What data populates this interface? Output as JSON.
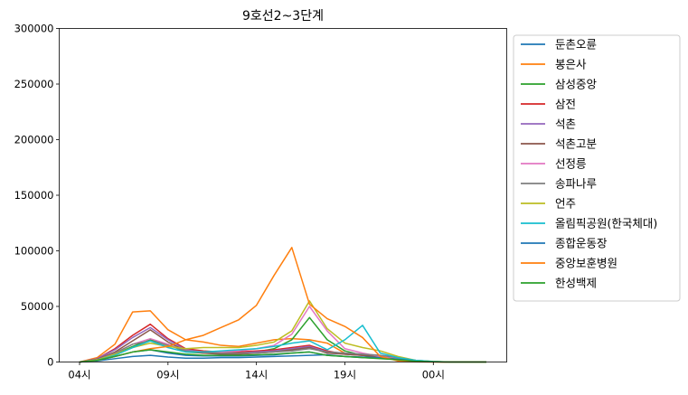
{
  "chart_data": {
    "type": "line",
    "title": "9호선2~3단계",
    "xlabel": "",
    "ylabel": "",
    "x": [
      0,
      1,
      2,
      3,
      4,
      5,
      6,
      7,
      8,
      9,
      10,
      11,
      12,
      13,
      14,
      15,
      16,
      17,
      18,
      19,
      20,
      21,
      22,
      23
    ],
    "xticks": [
      {
        "x": 0,
        "label": "04시"
      },
      {
        "x": 5,
        "label": "09시"
      },
      {
        "x": 10,
        "label": "14시"
      },
      {
        "x": 15,
        "label": "19시"
      },
      {
        "x": 20,
        "label": "00시"
      }
    ],
    "xlim": [
      -1.15,
      24.15
    ],
    "ylim": [
      0,
      300000
    ],
    "yticks": [
      0,
      50000,
      100000,
      150000,
      200000,
      250000,
      300000
    ],
    "grid": false,
    "legend_position": "outside-right",
    "series": [
      {
        "name": "둔촌오륜",
        "color": "#1f77b4",
        "values": [
          0,
          1000,
          3000,
          5000,
          6000,
          4500,
          3500,
          3500,
          4000,
          4000,
          4500,
          5000,
          5500,
          6000,
          6500,
          5000,
          4000,
          3500,
          3000,
          1500,
          500,
          0,
          0,
          0
        ]
      },
      {
        "name": "봉은사",
        "color": "#ff7f0e",
        "values": [
          0,
          4000,
          16000,
          45000,
          46000,
          29000,
          20000,
          18000,
          15000,
          14000,
          17000,
          20000,
          21000,
          20000,
          17000,
          8000,
          6000,
          5000,
          3000,
          1000,
          300,
          0,
          0,
          0
        ]
      },
      {
        "name": "삼성중앙",
        "color": "#2ca02c",
        "values": [
          0,
          2000,
          7000,
          14000,
          20000,
          16000,
          9000,
          8000,
          8000,
          8000,
          9000,
          12000,
          20000,
          40000,
          20000,
          10000,
          6000,
          4000,
          2000,
          800,
          200,
          0,
          0,
          0
        ]
      },
      {
        "name": "삼전",
        "color": "#d62728",
        "values": [
          0,
          3000,
          12000,
          24000,
          34000,
          21000,
          12000,
          10000,
          9000,
          9000,
          10000,
          11000,
          13000,
          15000,
          10000,
          7000,
          6000,
          5000,
          3000,
          1000,
          300,
          0,
          0,
          0
        ]
      },
      {
        "name": "석촌",
        "color": "#9467bd",
        "values": [
          0,
          3000,
          11000,
          22000,
          31000,
          20000,
          11000,
          9000,
          8000,
          8000,
          9000,
          10000,
          12000,
          14000,
          9000,
          8000,
          7000,
          6000,
          4000,
          1200,
          300,
          0,
          0,
          0
        ]
      },
      {
        "name": "석촌고분",
        "color": "#8c564b",
        "values": [
          0,
          2500,
          9000,
          19000,
          29000,
          18000,
          10000,
          8000,
          7000,
          7000,
          8000,
          9000,
          11000,
          13000,
          8000,
          7000,
          6000,
          5000,
          3000,
          1000,
          300,
          0,
          0,
          0
        ]
      },
      {
        "name": "선정릉",
        "color": "#e377c2",
        "values": [
          0,
          2000,
          8000,
          16000,
          21000,
          16000,
          10000,
          9000,
          9000,
          10000,
          12000,
          15000,
          25000,
          50000,
          28000,
          12000,
          8000,
          5000,
          3000,
          1000,
          300,
          0,
          0,
          0
        ]
      },
      {
        "name": "송파나루",
        "color": "#7f7f7f",
        "values": [
          0,
          2000,
          8000,
          16000,
          19000,
          15000,
          10000,
          9000,
          8000,
          8000,
          8000,
          9000,
          10000,
          12000,
          9000,
          8000,
          7000,
          6000,
          4000,
          1000,
          300,
          0,
          0,
          0
        ]
      },
      {
        "name": "언주",
        "color": "#bcbd22",
        "values": [
          0,
          2000,
          7000,
          13000,
          17000,
          14000,
          12000,
          13000,
          13000,
          13000,
          15000,
          18000,
          28000,
          55000,
          30000,
          17000,
          13000,
          10000,
          5000,
          1500,
          400,
          0,
          0,
          0
        ]
      },
      {
        "name": "올림픽공원(한국체대)",
        "color": "#17becf",
        "values": [
          0,
          1500,
          6000,
          13000,
          19000,
          13000,
          9000,
          9000,
          10000,
          11000,
          12000,
          14000,
          17000,
          19000,
          11000,
          20000,
          33000,
          8000,
          4000,
          1500,
          400,
          0,
          0,
          0
        ]
      },
      {
        "name": "종합운동장",
        "color": "#1f77b4",
        "values": [
          0,
          1500,
          5000,
          9000,
          11000,
          8000,
          6000,
          5500,
          5500,
          5500,
          6000,
          6500,
          8000,
          9000,
          6000,
          5000,
          4500,
          4000,
          2500,
          800,
          200,
          0,
          0,
          0
        ]
      },
      {
        "name": "중앙보훈병원",
        "color": "#ff7f0e",
        "values": [
          0,
          1500,
          5000,
          9000,
          12000,
          14000,
          20000,
          24000,
          31000,
          38000,
          51000,
          78000,
          103000,
          52000,
          39000,
          32000,
          22000,
          5000,
          1000,
          200,
          0,
          0,
          0,
          0
        ]
      },
      {
        "name": "한성백제",
        "color": "#2ca02c",
        "values": [
          0,
          1500,
          5000,
          9000,
          11000,
          9000,
          7000,
          6000,
          6000,
          6000,
          6500,
          7000,
          8000,
          9000,
          6000,
          5000,
          4000,
          3000,
          2000,
          700,
          200,
          0,
          0,
          0
        ]
      }
    ]
  }
}
